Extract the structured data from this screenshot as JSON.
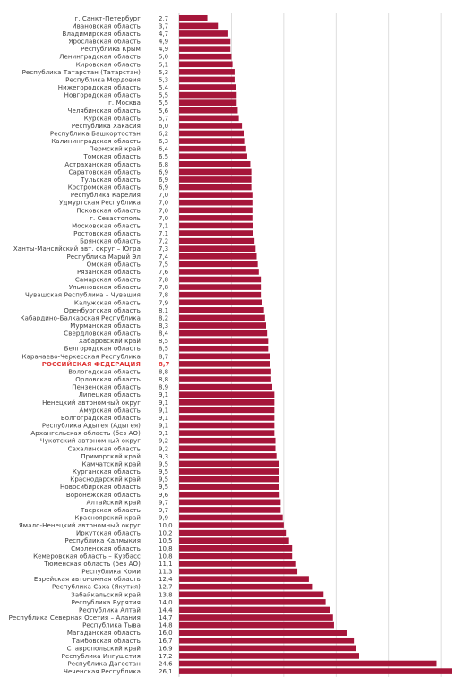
{
  "colors": {
    "bar": "#a6163a",
    "highlight": "#e03c3c",
    "text": "#3a3a3a",
    "grid": "#d6d6d6"
  },
  "chart_data": {
    "type": "bar",
    "orientation": "horizontal",
    "title": "",
    "xlabel": "",
    "ylabel": "",
    "xlim": [
      0,
      26.1
    ],
    "ticks": [
      0,
      5,
      10,
      15,
      20,
      25
    ],
    "grid": true,
    "highlight": "РОССИЙСКАЯ ФЕДЕРАЦИЯ",
    "categories": [
      "г. Санкт-Петербург",
      "Ивановская область",
      "Владимирская область",
      "Ярославская область",
      "Республика Крым",
      "Ленинградская область",
      "Кировская область",
      "Республика Татарстан (Татарстан)",
      "Республика Мордовия",
      "Нижегородская область",
      "Новгородская область",
      "г. Москва",
      "Челябинская область",
      "Курская область",
      "Республика Хакасия",
      "Республика Башкортостан",
      "Калининградская область",
      "Пермский край",
      "Томская область",
      "Астраханская область",
      "Саратовская область",
      "Тульская область",
      "Костромская область",
      "Республика Карелия",
      "Удмуртская Республика",
      "Псковская область",
      "г. Севастополь",
      "Московская область",
      "Ростовская область",
      "Брянская область",
      "Ханты-Мансийский авт. округ – Югра",
      "Республика Марий Эл",
      "Омская область",
      "Рязанская область",
      "Самарская область",
      "Ульяновская область",
      "Чувашская Республика – Чувашия",
      "Калужская область",
      "Оренбургская область",
      "Кабардино-Балкарская Республика",
      "Мурманская область",
      "Свердловская область",
      "Хабаровский край",
      "Белгородская область",
      "Карачаево-Черкесская Республика",
      "РОССИЙСКАЯ ФЕДЕРАЦИЯ",
      "Вологодская область",
      "Орловская область",
      "Пензенская область",
      "Липецкая область",
      "Ненецкий автономный округ",
      "Амурская область",
      "Волгоградская область",
      "Республика Адыгея (Адыгея)",
      "Архангельская область (без АО)",
      "Чукотский автономный округ",
      "Сахалинская область",
      "Приморский край",
      "Камчатский край",
      "Курганская область",
      "Краснодарский край",
      "Новосибирская область",
      "Воронежская область",
      "Алтайский край",
      "Тверская область",
      "Красноярский край",
      "Ямало-Ненецкий автономный округ",
      "Иркутская область",
      "Республика Калмыкия",
      "Смоленская область",
      "Кемеровская область – Кузбасс",
      "Тюменская область (без АО)",
      "Республика Коми",
      "Еврейская автономная область",
      "Республика Саха (Якутия)",
      "Забайкальский край",
      "Республика Бурятия",
      "Республика Алтай",
      "Республика Северная Осетия – Алания",
      "Республика Тыва",
      "Магаданская область",
      "Тамбовская область",
      "Ставропольский край",
      "Республика Ингушетия",
      "Республика Дагестан",
      "Чеченская Республика"
    ],
    "values": [
      2.7,
      3.7,
      4.7,
      4.9,
      4.9,
      5.0,
      5.1,
      5.3,
      5.3,
      5.4,
      5.5,
      5.5,
      5.6,
      5.7,
      6.0,
      6.2,
      6.3,
      6.4,
      6.5,
      6.8,
      6.9,
      6.9,
      6.9,
      7.0,
      7.0,
      7.0,
      7.0,
      7.1,
      7.1,
      7.2,
      7.3,
      7.4,
      7.5,
      7.6,
      7.8,
      7.8,
      7.8,
      7.9,
      8.1,
      8.2,
      8.3,
      8.4,
      8.5,
      8.5,
      8.7,
      8.7,
      8.8,
      8.8,
      8.9,
      9.1,
      9.1,
      9.1,
      9.1,
      9.1,
      9.1,
      9.2,
      9.2,
      9.3,
      9.5,
      9.5,
      9.5,
      9.5,
      9.6,
      9.7,
      9.7,
      9.9,
      10.0,
      10.2,
      10.5,
      10.8,
      10.8,
      11.1,
      11.3,
      12.4,
      12.7,
      13.8,
      14.0,
      14.4,
      14.7,
      14.8,
      16.0,
      16.7,
      16.9,
      17.2,
      24.6,
      26.1
    ],
    "value_labels": [
      "2,7",
      "3,7",
      "4,7",
      "4,9",
      "4,9",
      "5,0",
      "5,1",
      "5,3",
      "5,3",
      "5,4",
      "5,5",
      "5,5",
      "5,6",
      "5,7",
      "6,0",
      "6,2",
      "6,3",
      "6,4",
      "6,5",
      "6,8",
      "6,9",
      "6,9",
      "6,9",
      "7,0",
      "7,0",
      "7,0",
      "7,0",
      "7,1",
      "7,1",
      "7,2",
      "7,3",
      "7,4",
      "7,5",
      "7,6",
      "7,8",
      "7,8",
      "7,8",
      "7,9",
      "8,1",
      "8,2",
      "8,3",
      "8,4",
      "8,5",
      "8,5",
      "8,7",
      "8,7",
      "8,8",
      "8,8",
      "8,9",
      "9,1",
      "9,1",
      "9,1",
      "9,1",
      "9,1",
      "9,1",
      "9,2",
      "9,2",
      "9,3",
      "9,5",
      "9,5",
      "9,5",
      "9,5",
      "9,6",
      "9,7",
      "9,7",
      "9,9",
      "10,0",
      "10,2",
      "10,5",
      "10,8",
      "10,8",
      "11,1",
      "11,3",
      "12,4",
      "12,7",
      "13,8",
      "14,0",
      "14,4",
      "14,7",
      "14,8",
      "16,0",
      "16,7",
      "16,9",
      "17,2",
      "24,6",
      "26,1"
    ]
  }
}
